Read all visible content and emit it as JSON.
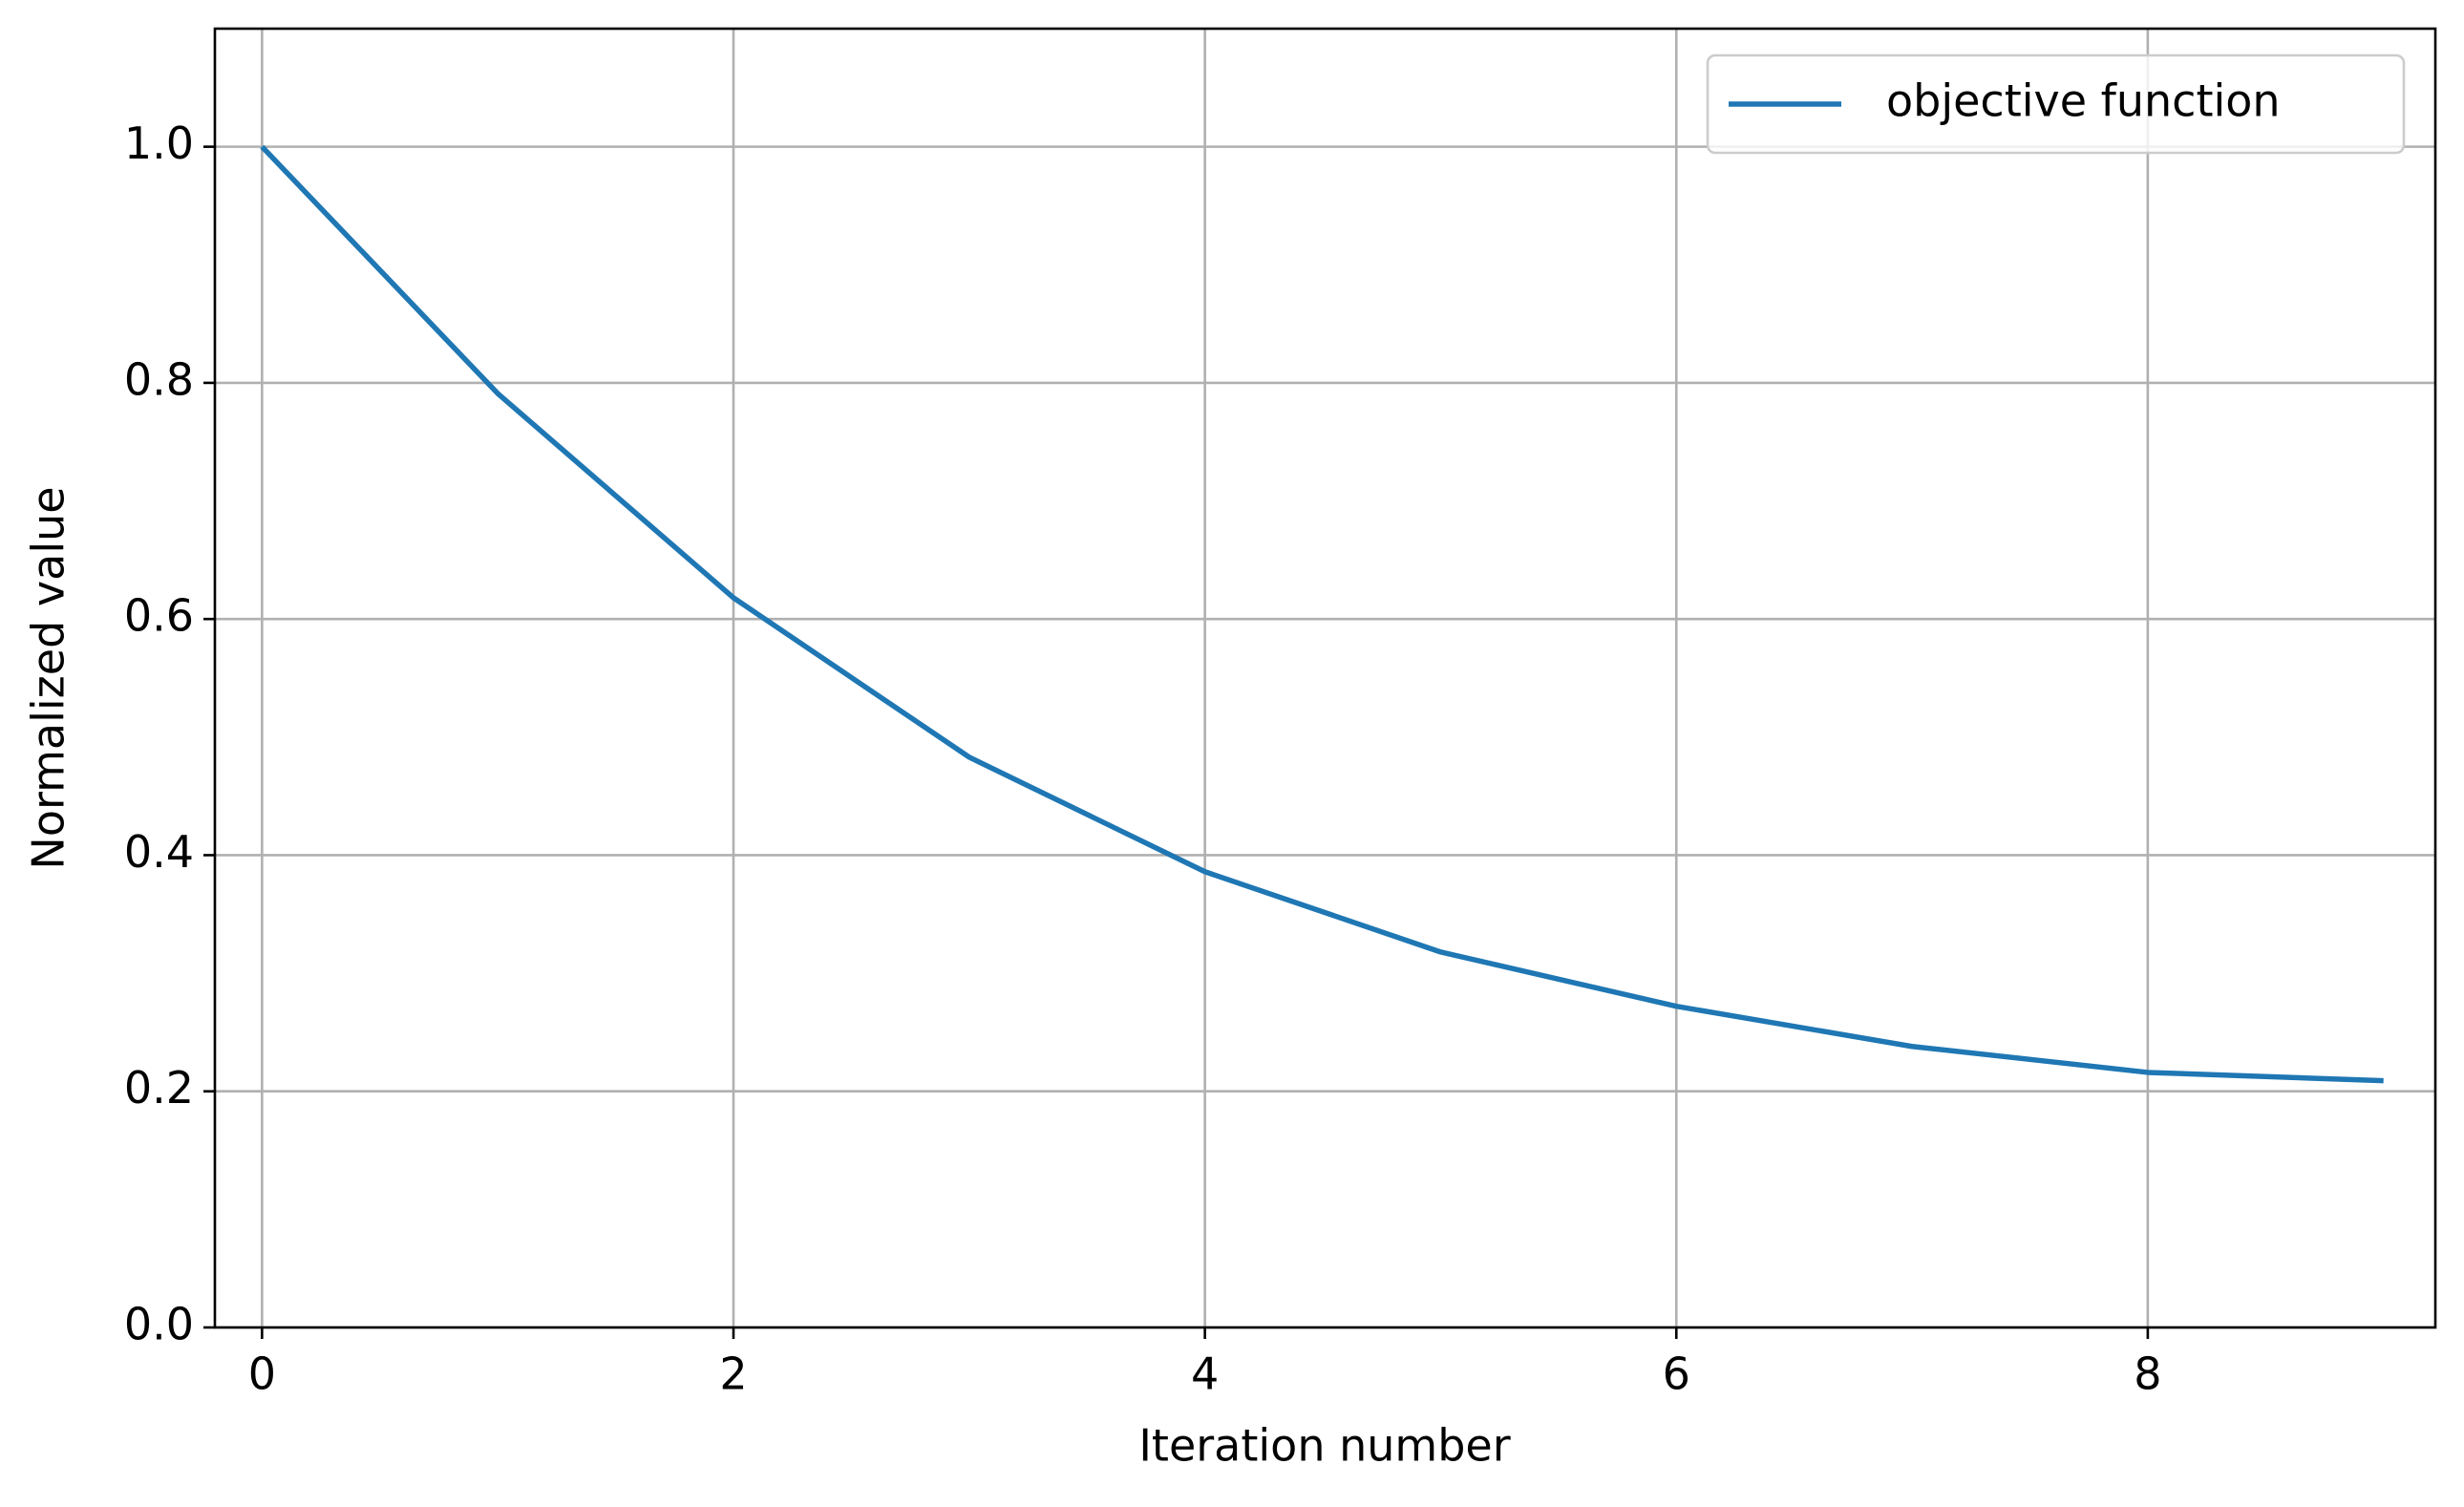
{
  "chart_data": {
    "type": "line",
    "x_label": "Iteration number",
    "y_label": "Normalized value",
    "x": [
      0,
      1,
      2,
      3,
      4,
      5,
      6,
      7,
      8,
      9
    ],
    "series": [
      {
        "name": "objective function",
        "color": "#1f77b4",
        "values": [
          1.0,
          0.791,
          0.618,
          0.483,
          0.386,
          0.318,
          0.272,
          0.238,
          0.216,
          0.209
        ]
      }
    ],
    "xlim": [
      -0.2,
      9.22
    ],
    "ylim": [
      0,
      1.1
    ],
    "xticks": [
      0,
      2,
      4,
      6,
      8
    ],
    "yticks": [
      {
        "value": 0,
        "label": "0.0"
      },
      0.2,
      0.4,
      0.6,
      0.8,
      {
        "value": 1,
        "label": "1.0"
      }
    ],
    "grid": true,
    "legend": "upper right"
  }
}
